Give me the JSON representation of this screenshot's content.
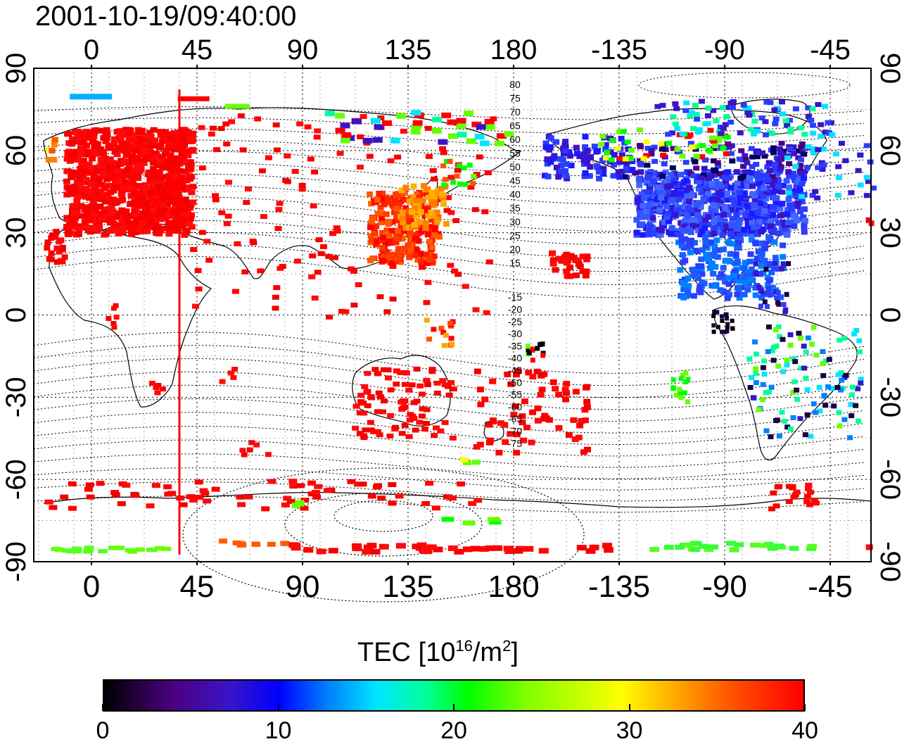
{
  "title": "2001-10-19/09:40:00",
  "map": {
    "x_ticks": [
      "0",
      "45",
      "90",
      "135",
      "180",
      "-135",
      "-90",
      "-45"
    ],
    "y_ticks": [
      "90",
      "60",
      "30",
      "0",
      "-30",
      "-60",
      "-90"
    ],
    "contour_labels": [
      "80",
      "75",
      "70",
      "65",
      "60",
      "55",
      "50",
      "45",
      "40",
      "35",
      "30",
      "25",
      "20",
      "15",
      "-15",
      "-20",
      "-25",
      "-30",
      "-35",
      "-40",
      "-45",
      "-50",
      "-55",
      "-60",
      "-65",
      "-70",
      "-75"
    ],
    "terminator_longitude": 37.5
  },
  "colorbar": {
    "label_main": "TEC  [10",
    "label_exp1": "16",
    "label_mid": "/m",
    "label_exp2": "2",
    "label_end": "]",
    "ticks": [
      "0",
      "10",
      "20",
      "30",
      "40"
    ],
    "range": [
      0,
      40
    ]
  }
}
